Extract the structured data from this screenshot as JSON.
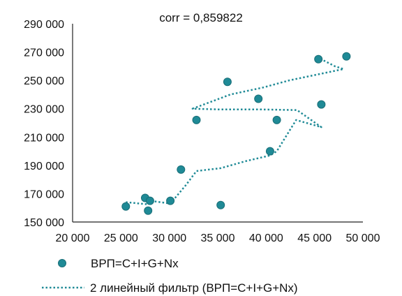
{
  "chart_data": {
    "type": "scatter",
    "title": "corr = 0,859822",
    "xlabel": "",
    "ylabel": "",
    "xlim": [
      20000,
      50000
    ],
    "ylim": [
      150000,
      290000
    ],
    "x_ticks": [
      "20 000",
      "25 000",
      "30 000",
      "35 000",
      "40 000",
      "45 000",
      "50 000"
    ],
    "y_ticks": [
      "150 000",
      "170 000",
      "190 000",
      "210 000",
      "230 000",
      "250 000",
      "270 000",
      "290 000"
    ],
    "grid": false,
    "legend_position": "bottom",
    "series": [
      {
        "name": "ВРП=C+I+G+Nx",
        "kind": "points",
        "color": "#1f8a96",
        "points": [
          [
            25500,
            161000
          ],
          [
            27500,
            167000
          ],
          [
            27800,
            158000
          ],
          [
            28000,
            165000
          ],
          [
            30100,
            165000
          ],
          [
            31200,
            187000
          ],
          [
            32800,
            222000
          ],
          [
            35300,
            162000
          ],
          [
            36000,
            249000
          ],
          [
            39200,
            237000
          ],
          [
            40400,
            200000
          ],
          [
            41100,
            222000
          ],
          [
            45400,
            265000
          ],
          [
            45700,
            233000
          ],
          [
            48300,
            267000
          ]
        ]
      },
      {
        "name": "2 линейный фильтр (ВРП=C+I+G+Nx)",
        "kind": "trendline",
        "color": "#1f8a96",
        "points": [
          [
            25500,
            164000
          ],
          [
            27700,
            162500
          ],
          [
            28000,
            165000
          ],
          [
            30100,
            163000
          ],
          [
            31700,
            176000
          ],
          [
            32800,
            186000
          ],
          [
            35300,
            188000
          ],
          [
            37900,
            193000
          ],
          [
            40400,
            197000
          ],
          [
            41100,
            200000
          ],
          [
            43100,
            222000
          ],
          [
            45700,
            217000
          ],
          [
            43200,
            229000
          ],
          [
            39300,
            229500
          ],
          [
            35000,
            229500
          ],
          [
            32400,
            230000
          ],
          [
            36300,
            240000
          ],
          [
            39700,
            245000
          ],
          [
            42400,
            250000
          ],
          [
            48000,
            258000
          ],
          [
            47100,
            260000
          ],
          [
            45400,
            266000
          ]
        ]
      }
    ]
  }
}
